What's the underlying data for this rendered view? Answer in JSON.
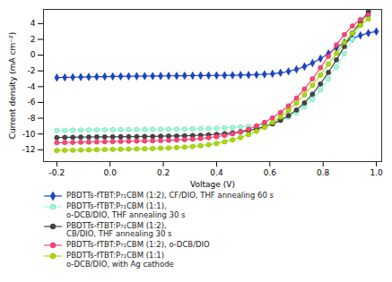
{
  "chart_data": {
    "type": "line",
    "xlabel": "Voltage (V)",
    "ylabel": "Current density (mA cm⁻²)",
    "xlim": [
      -0.25,
      1.02
    ],
    "ylim": [
      -13.5,
      5.8
    ],
    "xticks": [
      -0.2,
      {
        "value": 0.0,
        "label": "0.0"
      },
      0.2,
      0.4,
      0.6,
      0.8,
      {
        "value": 1.0,
        "label": "1.0"
      }
    ],
    "yticks": [
      0,
      -2,
      -4,
      -6,
      -8,
      -10,
      -12,
      2,
      4
    ],
    "series": [
      {
        "name": "PBDTTs-fTBT:P₇₁CBM (1:2), CF/DIO, THF annealing 60 s",
        "color": "#1a44cc",
        "marker": "diamond",
        "x": [
          -0.2,
          -0.17,
          -0.14,
          -0.11,
          -0.08,
          -0.05,
          -0.02,
          0.01,
          0.04,
          0.07,
          0.1,
          0.13,
          0.16,
          0.19,
          0.22,
          0.25,
          0.28,
          0.31,
          0.34,
          0.37,
          0.4,
          0.43,
          0.46,
          0.49,
          0.52,
          0.55,
          0.58,
          0.61,
          0.64,
          0.67,
          0.7,
          0.73,
          0.76,
          0.79,
          0.82,
          0.85,
          0.88,
          0.91,
          0.94,
          0.97,
          1.0
        ],
        "values": [
          -2.85,
          -2.82,
          -2.8,
          -2.78,
          -2.76,
          -2.74,
          -2.72,
          -2.7,
          -2.69,
          -2.68,
          -2.67,
          -2.66,
          -2.65,
          -2.64,
          -2.63,
          -2.62,
          -2.61,
          -2.6,
          -2.59,
          -2.58,
          -2.57,
          -2.56,
          -2.55,
          -2.53,
          -2.51,
          -2.48,
          -2.43,
          -2.36,
          -2.24,
          -2.06,
          -1.8,
          -1.45,
          -1.0,
          -0.45,
          0.2,
          0.95,
          1.6,
          2.1,
          2.5,
          2.8,
          3.0
        ]
      },
      {
        "name": "PBDTTs-fTBT:P₇₁CBM (1:1),\no-DCB/DIO, THF annealing 30 s",
        "color": "#99ffdd",
        "marker": "circle",
        "x": [
          -0.2,
          -0.17,
          -0.14,
          -0.11,
          -0.08,
          -0.05,
          -0.02,
          0.01,
          0.04,
          0.07,
          0.1,
          0.13,
          0.16,
          0.19,
          0.22,
          0.25,
          0.28,
          0.31,
          0.34,
          0.37,
          0.4,
          0.43,
          0.46,
          0.49,
          0.52,
          0.55,
          0.58,
          0.61,
          0.64,
          0.67,
          0.7,
          0.73,
          0.76,
          0.79,
          0.82,
          0.85,
          0.88,
          0.91,
          0.94,
          0.97
        ],
        "values": [
          -9.55,
          -9.53,
          -9.51,
          -9.5,
          -9.49,
          -9.48,
          -9.47,
          -9.46,
          -9.45,
          -9.44,
          -9.43,
          -9.42,
          -9.41,
          -9.4,
          -9.39,
          -9.38,
          -9.37,
          -9.35,
          -9.33,
          -9.3,
          -9.27,
          -9.23,
          -9.18,
          -9.12,
          -9.04,
          -8.93,
          -8.78,
          -8.57,
          -8.28,
          -7.87,
          -7.3,
          -6.55,
          -5.6,
          -4.4,
          -3.0,
          -1.5,
          0.2,
          2.0,
          3.8,
          5.5
        ]
      },
      {
        "name": "PBDTTs-fTBT:P₇₁CBM (1:2),\nCB/DIO, THF annealing 30 s",
        "color": "#444444",
        "marker": "circle",
        "x": [
          -0.2,
          -0.17,
          -0.14,
          -0.11,
          -0.08,
          -0.05,
          -0.02,
          0.01,
          0.04,
          0.07,
          0.1,
          0.13,
          0.16,
          0.19,
          0.22,
          0.25,
          0.28,
          0.31,
          0.34,
          0.37,
          0.4,
          0.43,
          0.46,
          0.49,
          0.52,
          0.55,
          0.58,
          0.61,
          0.64,
          0.67,
          0.7,
          0.73,
          0.76,
          0.79,
          0.82,
          0.85,
          0.88,
          0.91,
          0.94,
          0.97
        ],
        "values": [
          -10.45,
          -10.43,
          -10.41,
          -10.39,
          -10.38,
          -10.37,
          -10.36,
          -10.35,
          -10.34,
          -10.33,
          -10.32,
          -10.31,
          -10.3,
          -10.28,
          -10.26,
          -10.24,
          -10.22,
          -10.19,
          -10.15,
          -10.1,
          -10.04,
          -9.96,
          -9.86,
          -9.73,
          -9.56,
          -9.35,
          -9.08,
          -8.72,
          -8.26,
          -7.67,
          -6.95,
          -6.05,
          -4.95,
          -3.65,
          -2.2,
          -0.6,
          1.1,
          2.8,
          4.2,
          5.5
        ]
      },
      {
        "name": "PBDTTs-fTBT:P₇₁CBM (1:2), o-DCB/DIO",
        "color": "#ff4477",
        "marker": "circle",
        "x": [
          -0.2,
          -0.17,
          -0.14,
          -0.11,
          -0.08,
          -0.05,
          -0.02,
          0.01,
          0.04,
          0.07,
          0.1,
          0.13,
          0.16,
          0.19,
          0.22,
          0.25,
          0.28,
          0.31,
          0.34,
          0.37,
          0.4,
          0.43,
          0.46,
          0.49,
          0.52,
          0.55,
          0.58,
          0.61,
          0.64,
          0.67,
          0.7,
          0.73,
          0.76,
          0.79,
          0.82,
          0.85,
          0.88,
          0.91,
          0.94,
          0.97
        ],
        "values": [
          -11.1,
          -11.08,
          -11.06,
          -11.04,
          -11.02,
          -11.0,
          -10.98,
          -10.96,
          -10.94,
          -10.92,
          -10.9,
          -10.88,
          -10.86,
          -10.83,
          -10.8,
          -10.76,
          -10.71,
          -10.65,
          -10.57,
          -10.47,
          -10.34,
          -10.18,
          -9.97,
          -9.71,
          -9.39,
          -9.0,
          -8.53,
          -7.95,
          -7.26,
          -6.43,
          -5.44,
          -4.3,
          -3.0,
          -1.6,
          -0.15,
          1.3,
          2.6,
          3.7,
          4.5,
          5.1
        ]
      },
      {
        "name": "PBDTTs-fTBT:P₇₁CBM (1:1)\no-DCB/DIO, with Ag cathode",
        "color": "#aadd00",
        "marker": "circle",
        "x": [
          -0.2,
          -0.17,
          -0.14,
          -0.11,
          -0.08,
          -0.05,
          -0.02,
          0.01,
          0.04,
          0.07,
          0.1,
          0.13,
          0.16,
          0.19,
          0.22,
          0.25,
          0.28,
          0.31,
          0.34,
          0.37,
          0.4,
          0.43,
          0.46,
          0.49,
          0.52,
          0.55,
          0.58,
          0.61,
          0.64,
          0.67,
          0.7,
          0.73,
          0.76,
          0.79,
          0.82,
          0.85,
          0.88,
          0.91,
          0.94,
          0.97
        ],
        "values": [
          -12.1,
          -12.07,
          -12.05,
          -12.03,
          -12.01,
          -11.99,
          -11.97,
          -11.95,
          -11.93,
          -11.91,
          -11.89,
          -11.87,
          -11.84,
          -11.81,
          -11.77,
          -11.72,
          -11.66,
          -11.58,
          -11.48,
          -11.35,
          -11.19,
          -10.99,
          -10.74,
          -10.44,
          -10.08,
          -9.65,
          -9.14,
          -8.54,
          -7.84,
          -7.02,
          -6.08,
          -5.02,
          -3.82,
          -2.52,
          -1.15,
          0.25,
          1.6,
          2.8,
          3.8,
          4.6
        ]
      }
    ]
  }
}
